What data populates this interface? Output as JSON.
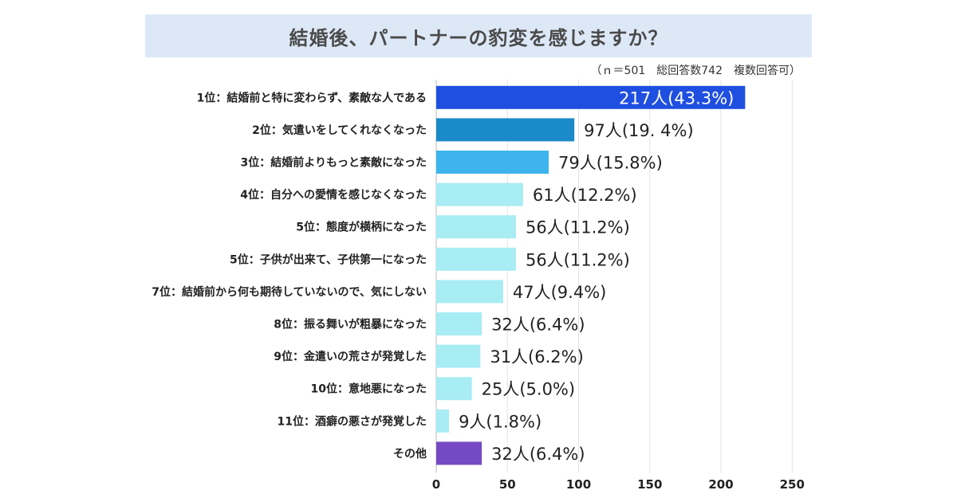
{
  "title": "結婚後、パートナーの豹変を感じますか？",
  "note": "（ｎ＝501　総回答数742　複数回答可）",
  "chart_data": {
    "type": "bar",
    "orientation": "horizontal",
    "title": "結婚後、パートナーの豹変を感じますか？",
    "xlim": [
      0,
      250
    ],
    "xticks": [
      "0",
      "50",
      "100",
      "150",
      "200",
      "250"
    ],
    "grid": true,
    "categories": [
      "1位：結婚前と特に変わらず、素敵な人である",
      "2位：気遣いをしてくれなくなった",
      "3位：結婚前よりもっと素敵になった",
      "4位：自分への愛情を感じなくなった",
      "5位：態度が横柄になった",
      "5位：子供が出来て、子供第一になった",
      "7位：結婚前から何も期待していないので、気にしない",
      "8位：振る舞いが粗暴になった",
      "9位：金遣いの荒さが発覚した",
      "10位：意地悪になった",
      "11位：酒癖の悪さが発覚した",
      "その他"
    ],
    "values": [
      217,
      97,
      79,
      61,
      56,
      56,
      47,
      32,
      31,
      25,
      9,
      32
    ],
    "value_labels": [
      "217人(43.3%)",
      "97人(19. 4%)",
      "79人(15.8%)",
      "61人(12.2%)",
      "56人(11.2%)",
      "56人(11.2%)",
      "47人(9.4%)",
      "32人(6.4%)",
      "31人(6.2%)",
      "25人(5.0%)",
      "9人(1.8%)",
      "32人(6.4%)"
    ],
    "colors": [
      "#1f4fe0",
      "#1a8ac9",
      "#3db5ec",
      "#a8ecf4",
      "#a8ecf4",
      "#a8ecf4",
      "#a8ecf4",
      "#a8ecf4",
      "#a8ecf4",
      "#a8ecf4",
      "#a8ecf4",
      "#7549c4"
    ]
  }
}
